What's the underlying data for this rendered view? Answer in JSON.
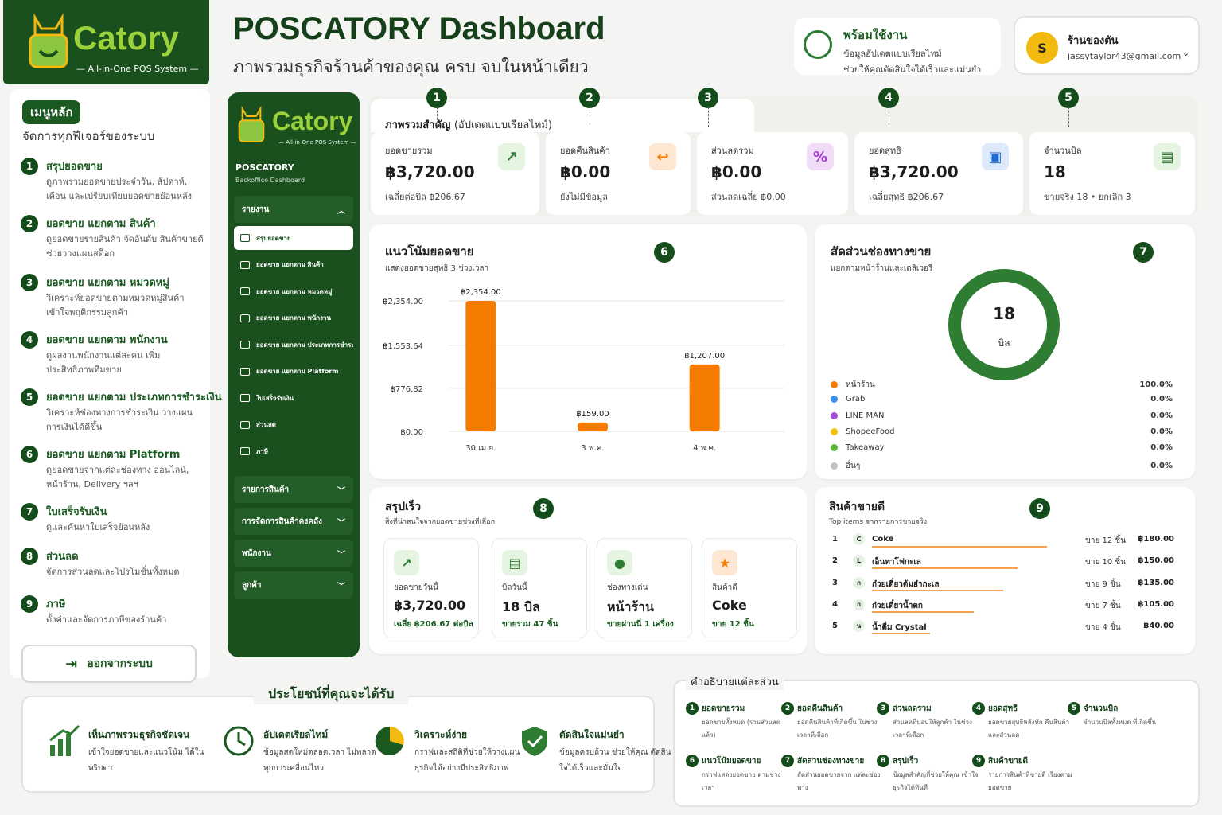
{
  "brand": {
    "name": "Catory",
    "tagline": "— All-in-One POS System —"
  },
  "header": {
    "title": "POSCATORY Dashboard",
    "subtitle": "ภาพรวมธุรกิจร้านค้าของคุณ ครบ จบในหน้าเดียว"
  },
  "status": {
    "title": "พร้อมใช้งาน",
    "line1": "ข้อมูลอัปเดตแบบเรียลไทม์",
    "line2": "ช่วยให้คุณตัดสินใจได้เร็วและแม่นยำ"
  },
  "store": {
    "initial": "S",
    "name": "ร้านของตัน",
    "email": "jassytaylor43@gmail.com"
  },
  "guide": {
    "pill": "เมนูหลัก",
    "subtitle": "จัดการทุกฟีเจอร์ของระบบ",
    "items": [
      {
        "n": "1",
        "title": "สรุปยอดขาย",
        "desc": "ดูภาพรวมยอดขายประจำวัน, สัปดาห์, เดือน และเปรียบเทียบยอดขายย้อนหลัง"
      },
      {
        "n": "2",
        "title": "ยอดขาย แยกตาม สินค้า",
        "desc": "ดูยอดขายรายสินค้า จัดอันดับ สินค้าขายดี ช่วยวางแผนสต็อก"
      },
      {
        "n": "3",
        "title": "ยอดขาย แยกตาม หมวดหมู่",
        "desc": "วิเคราะห์ยอดขายตามหมวดหมู่สินค้า เข้าใจพฤติกรรมลูกค้า"
      },
      {
        "n": "4",
        "title": "ยอดขาย แยกตาม พนักงาน",
        "desc": "ดูผลงานพนักงานแต่ละคน เพิ่มประสิทธิภาพทีมขาย"
      },
      {
        "n": "5",
        "title": "ยอดขาย แยกตาม ประเภทการชำระเงิน",
        "desc": "วิเคราะห์ช่องทางการชำระเงิน วางแผนการเงินได้ดีขึ้น"
      },
      {
        "n": "6",
        "title": "ยอดขาย แยกตาม Platform",
        "desc": "ดูยอดขายจากแต่ละช่องทาง ออนไลน์, หน้าร้าน, Delivery ฯลฯ"
      },
      {
        "n": "7",
        "title": "ใบเสร็จรับเงิน",
        "desc": "ดูและค้นหาใบเสร็จย้อนหลัง"
      },
      {
        "n": "8",
        "title": "ส่วนลด",
        "desc": "จัดการส่วนลดและโปรโมชั่นทั้งหมด"
      },
      {
        "n": "9",
        "title": "ภาษี",
        "desc": "ตั้งค่าและจัดการภาษีของร้านค้า"
      }
    ],
    "logout": "ออกจากระบบ"
  },
  "sidebar": {
    "name": "Catory",
    "tagline": "— All-in-One POS System —",
    "app": "POSCATORY",
    "app_sub": "Backoffice Dashboard",
    "reports": "รายงาน",
    "items": [
      "สรุปยอดขาย",
      "ยอดขาย แยกตาม สินค้า",
      "ยอดขาย แยกตาม หมวดหมู่",
      "ยอดขาย แยกตาม พนักงาน",
      "ยอดขาย แยกตาม ประเภทการชำระเงิน",
      "ยอดขาย แยกตาม Platform",
      "ใบเสร็จรับเงิน",
      "ส่วนลด",
      "ภาษี"
    ],
    "groups": [
      "รายการสินค้า",
      "การจัดการสินค้าคงคลัง",
      "พนักงาน",
      "ลูกค้า"
    ]
  },
  "kpi": {
    "title": "ภาพรวมสำคัญ",
    "title_note": "(อัปเดตแบบเรียลไทม์)",
    "cards": [
      {
        "n": "1",
        "label": "ยอดขายรวม",
        "value": "฿3,720.00",
        "sub": "เฉลี่ยต่อบิล ฿206.67",
        "icon": "↗"
      },
      {
        "n": "2",
        "label": "ยอดคืนสินค้า",
        "value": "฿0.00",
        "sub": "ยังไม่มีข้อมูล",
        "icon": "↩"
      },
      {
        "n": "3",
        "label": "ส่วนลดรวม",
        "value": "฿0.00",
        "sub": "ส่วนลดเฉลี่ย ฿0.00",
        "icon": "%"
      },
      {
        "n": "4",
        "label": "ยอดสุทธิ",
        "value": "฿3,720.00",
        "sub": "เฉลี่ยสุทธิ ฿206.67",
        "icon": "▣"
      },
      {
        "n": "5",
        "label": "จำนวนบิล",
        "value": "18",
        "sub": "ขายจริง 18 • ยกเลิก 3",
        "icon": "▤"
      }
    ],
    "colors": {
      "green": "#e6f4e2",
      "orange": "#fde6d2",
      "purple": "#f0dcf7",
      "blue": "#dde9fb"
    }
  },
  "trend": {
    "n": "6",
    "title": "แนวโน้มยอดขาย",
    "subtitle": "แสดงยอดขายสุทธิ 3 ช่วงเวลา"
  },
  "chart_data": {
    "type": "bar",
    "categories": [
      "30 เม.ย.",
      "3 พ.ค.",
      "4 พ.ค."
    ],
    "values": [
      2354.0,
      159.0,
      1207.0
    ],
    "value_labels": [
      "฿2,354.00",
      "฿159.00",
      "฿1,207.00"
    ],
    "yticks": [
      "฿0.00",
      "฿776.82",
      "฿1,553.64",
      "฿2,354.00"
    ],
    "ytick_values": [
      0,
      776.82,
      1553.64,
      2354.0
    ],
    "ylim": [
      0,
      2354.0
    ],
    "color": "#f57c00",
    "grid": true
  },
  "channel": {
    "n": "7",
    "title": "สัดส่วนช่องทางขาย",
    "subtitle": "แยกตามหน้าร้านและเดลิเวอรี่",
    "center_value": "18",
    "center_unit": "บิล",
    "legend": [
      {
        "name": "หน้าร้าน",
        "pct": "100.0%",
        "color": "#f57c00"
      },
      {
        "name": "Grab",
        "pct": "0.0%",
        "color": "#3b8fe6"
      },
      {
        "name": "LINE MAN",
        "pct": "0.0%",
        "color": "#a64bd6"
      },
      {
        "name": "ShopeeFood",
        "pct": "0.0%",
        "color": "#f4c20d"
      },
      {
        "name": "Takeaway",
        "pct": "0.0%",
        "color": "#5cb83c"
      },
      {
        "name": "อื่นๆ",
        "pct": "0.0%",
        "color": "#c2c2c2"
      }
    ]
  },
  "quick": {
    "n": "8",
    "title": "สรุปเร็ว",
    "subtitle": "สิ่งที่น่าสนใจจากยอดขายช่วงที่เลือก",
    "cards": [
      {
        "label": "ยอดขายวันนี้",
        "value": "฿3,720.00",
        "detail": "เฉลี่ย ฿206.67 ต่อบิล",
        "icon": "↗"
      },
      {
        "label": "บิลวันนี้",
        "value": "18 บิล",
        "detail": "ขายรวม 47 ชิ้น",
        "icon": "▤"
      },
      {
        "label": "ช่องทางเด่น",
        "value": "หน้าร้าน",
        "detail": "ขายผ่านนี่ 1 เครื่อง",
        "icon": "●"
      },
      {
        "label": "สินค้าดี",
        "value": "Coke",
        "detail": "ขาย 12 ชิ้น",
        "icon": "★"
      }
    ]
  },
  "topitems": {
    "n": "9",
    "title": "สินค้าขายดี",
    "subtitle": "Top items จากรายการขายจริง",
    "rows": [
      {
        "rank": "1",
        "ch": "C",
        "name": "Coke",
        "qty": "ขาย 12 ชิ้น",
        "amount": "฿180.00",
        "share": 1.0
      },
      {
        "rank": "2",
        "ch": "L",
        "name": "เอ็นทาโฟกะเล",
        "qty": "ขาย 10 ชิ้น",
        "amount": "฿150.00",
        "share": 0.83
      },
      {
        "rank": "3",
        "ch": "ก",
        "name": "ก๋วยเตี๋ยวต้มยำกะเล",
        "qty": "ขาย 9 ชิ้น",
        "amount": "฿135.00",
        "share": 0.75
      },
      {
        "rank": "4",
        "ch": "ก",
        "name": "ก๋วยเตี๋ยวน้ำตก",
        "qty": "ขาย 7 ชิ้น",
        "amount": "฿105.00",
        "share": 0.58
      },
      {
        "rank": "5",
        "ch": "น",
        "name": "น้ำดื่ม Crystal",
        "qty": "ขาย 4 ชิ้น",
        "amount": "฿40.00",
        "share": 0.33
      }
    ]
  },
  "benefits": {
    "title": "ประโยชน์ที่คุณจะได้รับ",
    "items": [
      {
        "title": "เห็นภาพรวมธุรกิจชัดเจน",
        "desc": "เข้าใจยอดขายและแนวโน้ม ได้ในพริบตา"
      },
      {
        "title": "อัปเดตเรียลไทม์",
        "desc": "ข้อมูลสดใหม่ตลอดเวลา ไม่พลาดทุกการเคลื่อนไหว"
      },
      {
        "title": "วิเคราะห์ง่าย",
        "desc": "กราฟและสถิติที่ช่วยให้วางแผน ธุรกิจได้อย่างมีประสิทธิภาพ"
      },
      {
        "title": "ตัดสินใจแม่นยำ",
        "desc": "ข้อมูลครบถ้วน ช่วยให้คุณ ตัดสินใจได้เร็วและมั่นใจ"
      }
    ]
  },
  "legend_section": {
    "title": "คำอธิบายแต่ละส่วน",
    "items": [
      {
        "n": "1",
        "title": "ยอดขายรวม",
        "desc": "ยอดขายทั้งหมด (รวมส่วนลดแล้ว)"
      },
      {
        "n": "2",
        "title": "ยอดคืนสินค้า",
        "desc": "ยอดคืนสินค้าที่เกิดขึ้น ในช่วงเวลาที่เลือก"
      },
      {
        "n": "3",
        "title": "ส่วนลดรวม",
        "desc": "ส่วนลดที่มอบให้ลูกค้า ในช่วงเวลาที่เลือก"
      },
      {
        "n": "4",
        "title": "ยอดสุทธิ",
        "desc": "ยอดขายสุทธิหลังหัก คืนสินค้าและส่วนลด"
      },
      {
        "n": "5",
        "title": "จำนวนบิล",
        "desc": "จำนวนบิลทั้งหมด ที่เกิดขึ้น"
      },
      {
        "n": "6",
        "title": "แนวโน้มยอดขาย",
        "desc": "กราฟแสดงยอดขาย ตามช่วงเวลา"
      },
      {
        "n": "7",
        "title": "สัดส่วนช่องทางขาย",
        "desc": "สัดส่วนยอดขายจาก แต่ละช่องทาง"
      },
      {
        "n": "8",
        "title": "สรุปเร็ว",
        "desc": "ข้อมูลสำคัญที่ช่วยให้คุณ เข้าใจธุรกิจได้ทันที"
      },
      {
        "n": "9",
        "title": "สินค้าขายดี",
        "desc": "รายการสินค้าที่ขายดี เรียงตามยอดขาย"
      }
    ]
  }
}
